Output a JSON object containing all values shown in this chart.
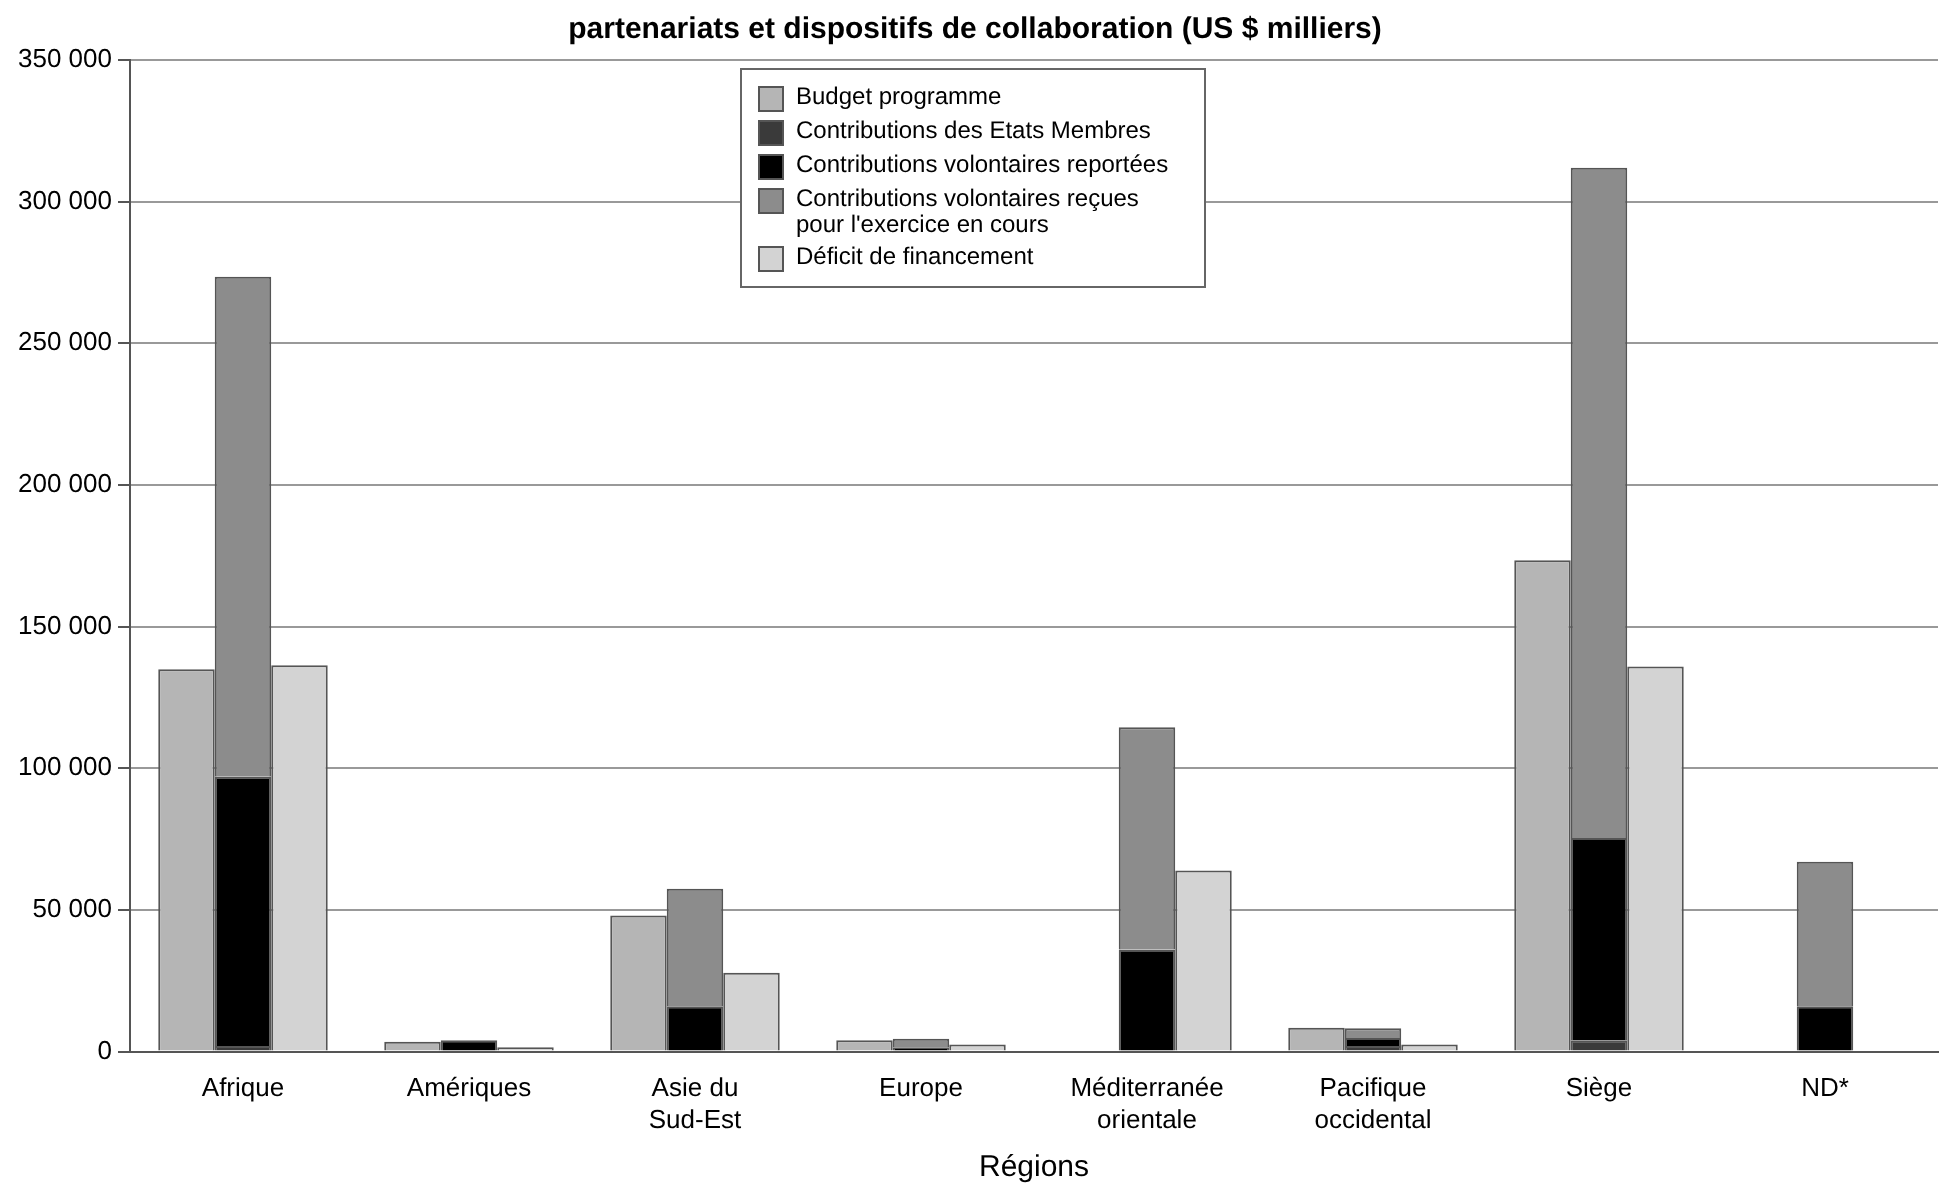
{
  "chart_data": {
    "type": "bar",
    "title": "partenariats et dispositifs de collaboration (US $ milliers)",
    "xlabel": "Régions",
    "categories": [
      "Afrique",
      "Amériques",
      "Asie du Sud-Est",
      "Europe",
      "Méditerranée orientale",
      "Pacifique occidental",
      "Siège",
      "ND*"
    ],
    "series": [
      {
        "name": "Budget programme",
        "color": "#b5b5b5",
        "values": [
          135000,
          3500,
          48000,
          4000,
          0,
          8400,
          173400,
          0
        ]
      },
      {
        "name": "Contributions des Etats Membres",
        "color": "#3a3a3a",
        "values": [
          2000,
          null,
          0,
          0,
          0,
          2000,
          4000,
          0
        ]
      },
      {
        "name": "Contributions volontaires reportées",
        "color": "#000000",
        "base": [
          2000,
          0,
          0,
          0,
          0,
          2000,
          4000,
          0
        ],
        "values": [
          95000,
          4000,
          16000,
          1500,
          36000,
          2800,
          71400,
          16000
        ]
      },
      {
        "name": "Contributions volontaires reçues pour l'exercice en cours",
        "color": "#8c8c8c",
        "base": [
          97000,
          null,
          16000,
          1500,
          36000,
          4800,
          75400,
          16000
        ],
        "values": [
          176500,
          null,
          41500,
          3000,
          78500,
          3400,
          236600,
          51000
        ]
      },
      {
        "name": "Déficit de financement",
        "color": "#d3d3d3",
        "values": [
          136400,
          1500,
          27800,
          2500,
          63900,
          2500,
          135900,
          0
        ]
      }
    ],
    "ylim": [
      0,
      350000
    ],
    "yticks": [
      {
        "value": 0,
        "label": "0"
      },
      {
        "value": 50000,
        "label": "50 000"
      },
      {
        "value": 100000,
        "label": "100 000"
      },
      {
        "value": 150000,
        "label": "150 000"
      },
      {
        "value": 200000,
        "label": "200 000"
      },
      {
        "value": 250000,
        "label": "250 000"
      },
      {
        "value": 300000,
        "label": "300 000"
      },
      {
        "value": 350000,
        "label": "350 000"
      }
    ],
    "grid": "y",
    "legend": "top"
  }
}
